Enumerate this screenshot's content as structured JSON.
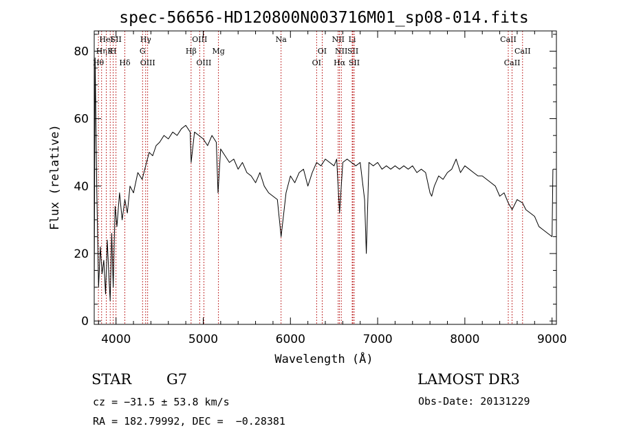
{
  "title": "spec-56656-HD120800N003716M01_sp08-014.fits",
  "chart_data": {
    "type": "line",
    "xlabel": "Wavelength (Å)",
    "ylabel": "Flux (relative)",
    "xlim": [
      3750,
      9050
    ],
    "ylim": [
      -1,
      86
    ],
    "xticks": [
      4000,
      5000,
      6000,
      7000,
      8000,
      9000
    ],
    "yticks": [
      0,
      20,
      40,
      60,
      80
    ],
    "series": [
      {
        "x": [
          3750,
          3760,
          3780,
          3800,
          3820,
          3840,
          3860,
          3880,
          3900,
          3920,
          3933,
          3950,
          3968,
          3990,
          4010,
          4040,
          4070,
          4101,
          4130,
          4160,
          4200,
          4250,
          4300,
          4340,
          4380,
          4420,
          4460,
          4500,
          4550,
          4600,
          4650,
          4700,
          4750,
          4800,
          4850,
          4861,
          4900,
          4950,
          5000,
          5050,
          5100,
          5150,
          5170,
          5200,
          5250,
          5300,
          5350,
          5400,
          5450,
          5500,
          5550,
          5600,
          5650,
          5700,
          5750,
          5800,
          5850,
          5893,
          5950,
          6000,
          6050,
          6100,
          6150,
          6200,
          6250,
          6300,
          6350,
          6400,
          6450,
          6500,
          6530,
          6563,
          6600,
          6650,
          6700,
          6750,
          6800,
          6850,
          6870,
          6900,
          6950,
          7000,
          7050,
          7100,
          7150,
          7200,
          7250,
          7300,
          7350,
          7400,
          7450,
          7500,
          7550,
          7600,
          7620,
          7650,
          7700,
          7750,
          7800,
          7850,
          7900,
          7950,
          8000,
          8050,
          8100,
          8150,
          8200,
          8250,
          8300,
          8350,
          8400,
          8450,
          8498,
          8542,
          8600,
          8662,
          8700,
          8750,
          8800,
          8850,
          8900,
          8950,
          9000,
          9010
        ],
        "y": [
          8,
          78,
          38,
          10,
          22,
          14,
          18,
          8,
          24,
          12,
          6,
          26,
          10,
          34,
          28,
          38,
          30,
          36,
          32,
          40,
          38,
          44,
          42,
          46,
          50,
          49,
          52,
          53,
          55,
          54,
          56,
          55,
          57,
          58,
          56,
          47,
          56,
          55,
          54,
          52,
          55,
          53,
          38,
          51,
          49,
          47,
          48,
          45,
          47,
          44,
          43,
          41,
          44,
          40,
          38,
          37,
          36,
          25,
          38,
          43,
          41,
          44,
          45,
          40,
          44,
          47,
          46,
          48,
          47,
          46,
          48,
          32,
          47,
          48,
          47,
          46,
          47,
          36,
          20,
          47,
          46,
          47,
          45,
          46,
          45,
          46,
          45,
          46,
          45,
          46,
          44,
          45,
          44,
          38,
          37,
          40,
          43,
          42,
          44,
          45,
          48,
          44,
          46,
          45,
          44,
          43,
          43,
          42,
          41,
          40,
          37,
          38,
          35,
          33,
          36,
          35,
          33,
          32,
          31,
          28,
          27,
          26,
          25,
          45
        ]
      }
    ],
    "lines": [
      {
        "label": "Hθ",
        "x": 3798,
        "row": 3
      },
      {
        "label": "Hη",
        "x": 3835,
        "row": 2
      },
      {
        "label": "HeI",
        "x": 3889,
        "row": 1
      },
      {
        "label": "K",
        "x": 3933,
        "row": 2
      },
      {
        "label": "H",
        "x": 3968,
        "row": 2
      },
      {
        "label": "SII",
        "x": 4000,
        "row": 1
      },
      {
        "label": "Hδ",
        "x": 4101,
        "row": 3
      },
      {
        "label": "Hγ",
        "x": 4340,
        "row": 1
      },
      {
        "label": "G",
        "x": 4304,
        "row": 2
      },
      {
        "label": "OIII",
        "x": 4363,
        "row": 3
      },
      {
        "label": "Hβ",
        "x": 4861,
        "row": 2
      },
      {
        "label": "OIII",
        "x": 4959,
        "row": 1
      },
      {
        "label": "OIII",
        "x": 5007,
        "row": 3
      },
      {
        "label": "Mg",
        "x": 5175,
        "row": 2
      },
      {
        "label": "Na",
        "x": 5893,
        "row": 1
      },
      {
        "label": "OI",
        "x": 6300,
        "row": 3
      },
      {
        "label": "OI",
        "x": 6364,
        "row": 2
      },
      {
        "label": "NII",
        "x": 6548,
        "row": 1
      },
      {
        "label": "NII",
        "x": 6583,
        "row": 2
      },
      {
        "label": "Hα",
        "x": 6563,
        "row": 3
      },
      {
        "label": "Li",
        "x": 6708,
        "row": 1
      },
      {
        "label": "SII",
        "x": 6716,
        "row": 2
      },
      {
        "label": "SII",
        "x": 6731,
        "row": 3
      },
      {
        "label": "CaII",
        "x": 8498,
        "row": 1
      },
      {
        "label": "CaII",
        "x": 8542,
        "row": 3
      },
      {
        "label": "CaII",
        "x": 8662,
        "row": 2
      }
    ]
  },
  "info": {
    "class": "STAR",
    "subclass": "G7",
    "cz": "cz = −31.5 ± 53.8 km/s",
    "coords": "RA = 182.79992, DEC =  −0.28381",
    "survey": "LAMOST DR3",
    "obsdate": "Obs-Date: 20131229"
  },
  "colors": {
    "axis": "#000000",
    "spectrum": "#000000",
    "lines": "#b30000"
  }
}
